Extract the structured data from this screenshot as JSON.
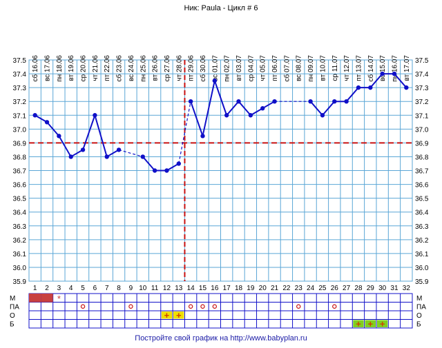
{
  "title": "Ник: Paula - Цикл # 6",
  "footer": {
    "text": "Постройте свой график на",
    "url": "http://www.babyplan.ru"
  },
  "colors": {
    "grid": "#5aa6d6",
    "series": "#1010c8",
    "coverline": "#c81010",
    "ovulation": "#c81010",
    "menses": "#c84040",
    "cervical": "#c81010",
    "test_o_fill": "#f0e000",
    "test_b_fill": "#80d020",
    "test_plus": "#d04000"
  },
  "chart_data": {
    "type": "line",
    "title": "Ник: Paula - Цикл # 6",
    "xlabel": "",
    "ylabel": "",
    "ylim": [
      35.9,
      37.5
    ],
    "y_ticks": [
      "37.5",
      "37.4",
      "37.3",
      "37.2",
      "37.1",
      "37.0",
      "36.9",
      "36.8",
      "36.7",
      "36.6",
      "36.5",
      "36.4",
      "36.3",
      "36.2",
      "36.1",
      "36.0",
      "35.9"
    ],
    "grid": true,
    "days": [
      "1",
      "2",
      "3",
      "4",
      "5",
      "6",
      "7",
      "8",
      "9",
      "10",
      "11",
      "12",
      "13",
      "14",
      "15",
      "16",
      "17",
      "18",
      "19",
      "20",
      "21",
      "22",
      "23",
      "24",
      "25",
      "26",
      "27",
      "28",
      "29",
      "30",
      "31",
      "32"
    ],
    "dates": [
      "сб 16.06",
      "вс 17.06",
      "пн 18.06",
      "вт 19.06",
      "ср 20.06",
      "чт 21.06",
      "пт 22.06",
      "сб 23.06",
      "вс 24.06",
      "пн 25.06",
      "вт 26.06",
      "ср 27.06",
      "чт 28.06",
      "пт 29.06",
      "сб 30.06",
      "вс 01.07",
      "пн 02.07",
      "вт 03.07",
      "ср 04.07",
      "чт 05.07",
      "пт 06.07",
      "сб 07.07",
      "вс 08.07",
      "пн 09.07",
      "вт 10.07",
      "ср 11.07",
      "чт 12.07",
      "пт 13.07",
      "сб 14.07",
      "вс 15.07",
      "пн 16.07",
      "вт 17.07"
    ],
    "series": [
      {
        "values": [
          37.1,
          37.05,
          36.95,
          36.8,
          36.85,
          37.1,
          36.8,
          36.85,
          null,
          36.8,
          36.7,
          36.7,
          36.75,
          37.2,
          36.95,
          37.35,
          37.1,
          37.2,
          37.1,
          37.15,
          37.2,
          null,
          null,
          37.2,
          37.1,
          37.2,
          37.2,
          37.3,
          37.3,
          37.4,
          37.4,
          37.3
        ],
        "dashed_segments": [
          [
            8,
            10
          ],
          [
            13,
            14
          ],
          [
            21,
            24
          ]
        ]
      }
    ],
    "coverline": 36.9,
    "ovulation_day": 13,
    "rows": [
      {
        "label": "М",
        "marks": {
          "1": "bar",
          "2": "bar",
          "3": "star"
        }
      },
      {
        "label": "ПА",
        "marks": {
          "5": "circle",
          "9": "circle",
          "14": "circle",
          "15": "circle",
          "16": "circle",
          "23": "circle",
          "26": "circle"
        }
      },
      {
        "label": "О",
        "marks": {
          "12": "plus-yellow",
          "13": "plus-yellow"
        }
      },
      {
        "label": "Б",
        "marks": {
          "28": "plus-green",
          "29": "plus-green",
          "30": "plus-green"
        }
      }
    ]
  }
}
